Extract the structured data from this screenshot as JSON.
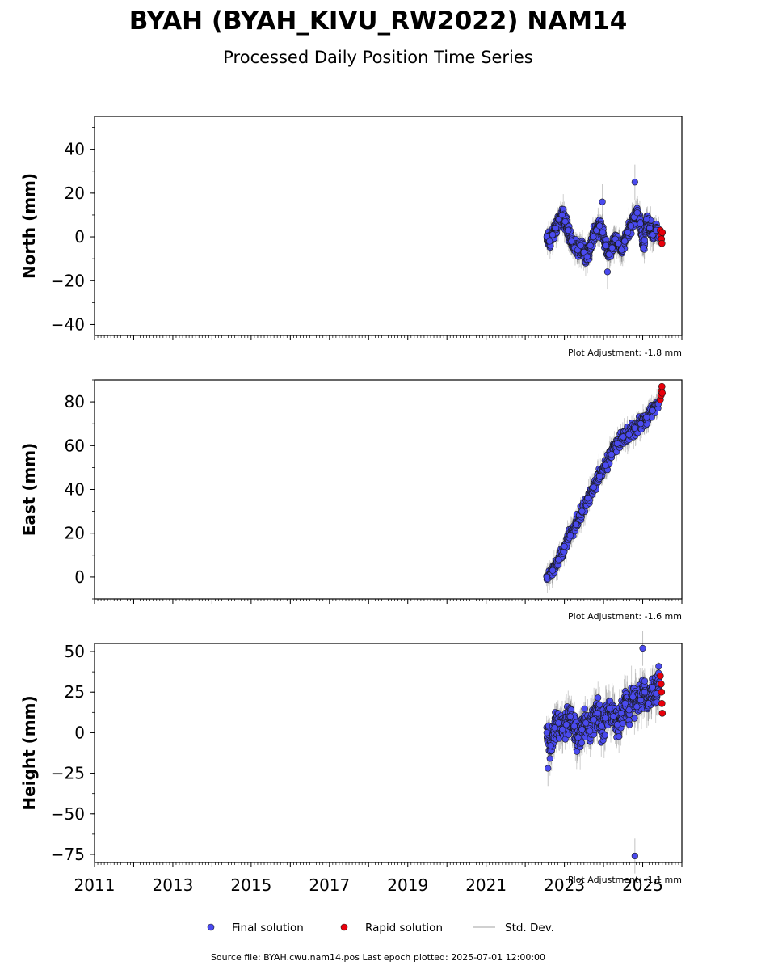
{
  "title": "BYAH (BYAH_KIVU_RW2022) NAM14",
  "subtitle": "Processed Daily Position Time Series",
  "legend": {
    "final": "Final solution",
    "rapid": "Rapid solution",
    "std": "Std. Dev."
  },
  "footer": "Source file: BYAH.cwu.nam14.pos  Last epoch plotted: 2025-07-01 12:00:00",
  "colors": {
    "final": "#4a4aef",
    "rapid": "#e8000b",
    "std": "#b0b0b0",
    "edge": "#1a1a1a"
  },
  "chart_data": [
    {
      "type": "scatter",
      "ylabel": "North (mm)",
      "xlim": [
        2011,
        2026
      ],
      "ylim": [
        -45,
        55
      ],
      "yticks": [
        -40,
        -20,
        0,
        20,
        40
      ],
      "adjustment": "Plot Adjustment: -1.8 mm",
      "series": [
        {
          "name": "Final solution",
          "x": [
            2022.55,
            2022.62,
            2022.7,
            2022.78,
            2022.86,
            2022.94,
            2023.02,
            2023.1,
            2023.18,
            2023.26,
            2023.34,
            2023.42,
            2023.5,
            2023.58,
            2023.66,
            2023.74,
            2023.82,
            2023.9,
            2023.98,
            2024.06,
            2024.14,
            2024.22,
            2024.3,
            2024.38,
            2024.46,
            2024.54,
            2024.62,
            2024.7,
            2024.78,
            2024.86,
            2024.94,
            2025.02,
            2025.1,
            2025.18,
            2025.26,
            2025.34,
            2025.42
          ],
          "y": [
            0,
            -2,
            1,
            4,
            8,
            10,
            7,
            3,
            -2,
            -5,
            -6,
            -4,
            -7,
            -9,
            -4,
            0,
            3,
            5,
            2,
            -4,
            -8,
            -5,
            -1,
            -3,
            -6,
            -2,
            2,
            5,
            9,
            11,
            6,
            -5,
            8,
            4,
            1,
            3,
            0
          ]
        },
        {
          "name": "Rapid solution",
          "x": [
            2025.45,
            2025.47,
            2025.48,
            2025.49,
            2025.5
          ],
          "y": [
            3,
            1,
            -1,
            -3,
            2
          ]
        }
      ],
      "outliers": {
        "x": [
          2024.8,
          2023.97,
          2024.1
        ],
        "y": [
          25,
          16,
          -16
        ]
      }
    },
    {
      "type": "scatter",
      "ylabel": "East (mm)",
      "xlim": [
        2011,
        2026
      ],
      "ylim": [
        -10,
        90
      ],
      "yticks": [
        0,
        20,
        40,
        60,
        80
      ],
      "adjustment": "Plot Adjustment: -1.6 mm",
      "series": [
        {
          "name": "Final solution",
          "x": [
            2022.55,
            2022.7,
            2022.85,
            2023.0,
            2023.15,
            2023.3,
            2023.45,
            2023.6,
            2023.75,
            2023.9,
            2024.05,
            2024.2,
            2024.35,
            2024.5,
            2024.65,
            2024.8,
            2024.95,
            2025.1,
            2025.25,
            2025.4
          ],
          "y": [
            0,
            3,
            8,
            14,
            19,
            24,
            30,
            36,
            41,
            46,
            51,
            56,
            61,
            64,
            65,
            68,
            70,
            73,
            76,
            79
          ]
        },
        {
          "name": "Rapid solution",
          "x": [
            2025.45,
            2025.47,
            2025.48,
            2025.49,
            2025.5
          ],
          "y": [
            81,
            83,
            85,
            87,
            84
          ]
        }
      ]
    },
    {
      "type": "scatter",
      "ylabel": "Height (mm)",
      "xlim": [
        2011,
        2026
      ],
      "ylim": [
        -80,
        55
      ],
      "yticks": [
        -75,
        -50,
        -25,
        0,
        25,
        50
      ],
      "xticks": [
        "2011",
        "2013",
        "2015",
        "2017",
        "2019",
        "2021",
        "2023",
        "2025"
      ],
      "adjustment": "Plot Adjustment: -1.1 mm",
      "series": [
        {
          "name": "Final solution",
          "x": [
            2022.55,
            2022.65,
            2022.75,
            2022.85,
            2022.95,
            2023.05,
            2023.15,
            2023.25,
            2023.35,
            2023.45,
            2023.55,
            2023.65,
            2023.75,
            2023.85,
            2023.95,
            2024.05,
            2024.15,
            2024.25,
            2024.35,
            2024.45,
            2024.55,
            2024.65,
            2024.75,
            2024.85,
            2024.95,
            2025.05,
            2025.15,
            2025.25,
            2025.35,
            2025.42
          ],
          "y": [
            0,
            -8,
            3,
            6,
            2,
            5,
            10,
            4,
            -3,
            2,
            6,
            1,
            8,
            12,
            4,
            9,
            15,
            10,
            5,
            12,
            18,
            14,
            22,
            16,
            20,
            25,
            18,
            28,
            24,
            30
          ]
        },
        {
          "name": "Rapid solution",
          "x": [
            2025.45,
            2025.47,
            2025.48,
            2025.49,
            2025.5
          ],
          "y": [
            35,
            30,
            25,
            18,
            12
          ]
        }
      ],
      "outliers": {
        "x": [
          2024.8,
          2025.0,
          2022.58
        ],
        "y": [
          -76,
          52,
          -22
        ]
      }
    }
  ]
}
